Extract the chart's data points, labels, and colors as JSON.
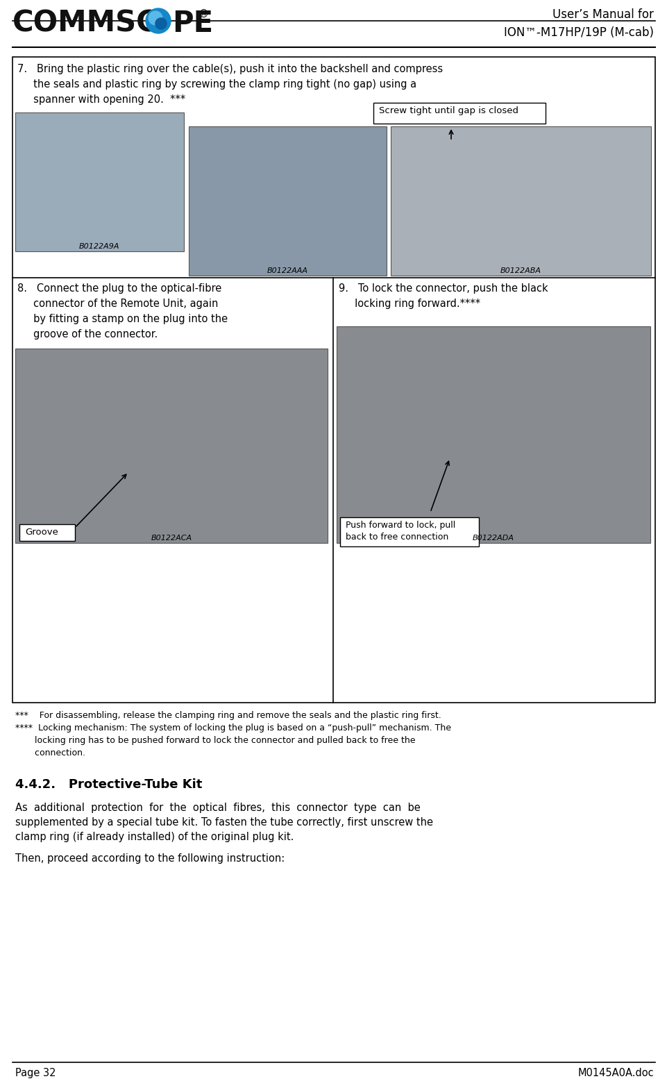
{
  "bg_color": "#ffffff",
  "header_right_line1": "User’s Manual for",
  "header_right_line2": "ION™-M17HP/19P (M-cab)",
  "footer_left": "Page 32",
  "footer_right": "M0145A0A.doc",
  "step7_text_line1": "7.   Bring the plastic ring over the cable(s), push it into the backshell and compress",
  "step7_text_line2": "     the seals and plastic ring by screwing the clamp ring tight (no gap) using a",
  "step7_text_line3": "     spanner with opening 20.  ***",
  "step8_text_line1": "8.   Connect the plug to the optical-fibre",
  "step8_text_line2": "     connector of the Remote Unit, again",
  "step8_text_line3": "     by fitting a stamp on the plug into the",
  "step8_text_line4": "     groove of the connector.",
  "step9_text_line1": "9.   To lock the connector, push the black",
  "step9_text_line2": "     locking ring forward.****",
  "footnote1": "***    For disassembling, release the clamping ring and remove the seals and the plastic ring first.",
  "footnote2_line1": "****  Locking mechanism: The system of locking the plug is based on a “push-pull” mechanism. The",
  "footnote2_line2": "       locking ring has to be pushed forward to lock the connector and pulled back to free the",
  "footnote2_line3": "       connection.",
  "section_title": "4.4.2.   Protective-Tube Kit",
  "body_line1": "As  additional  protection  for  the  optical  fibres,  this  connector  type  can  be",
  "body_line2": "supplemented by a special tube kit. To fasten the tube correctly, first unscrew the",
  "body_line3": "clamp ring (if already installed) of the original plug kit.",
  "body_line5": "Then, proceed according to the following instruction:",
  "callout_screw": "Screw tight until gap is closed",
  "callout_groove": "Groove",
  "callout_pushpull_line1": "Push forward to lock, pull",
  "callout_pushpull_line2": "back to free connection",
  "img1_label": "B0122A9A",
  "img2_label": "B0122AAA",
  "img3_label": "B0122ABA",
  "img4_label": "B0122ACA",
  "img5_label": "B0122ADA",
  "img_placeholder_color": "#a0a8b0",
  "box_color": "#000000",
  "text_color": "#000000"
}
